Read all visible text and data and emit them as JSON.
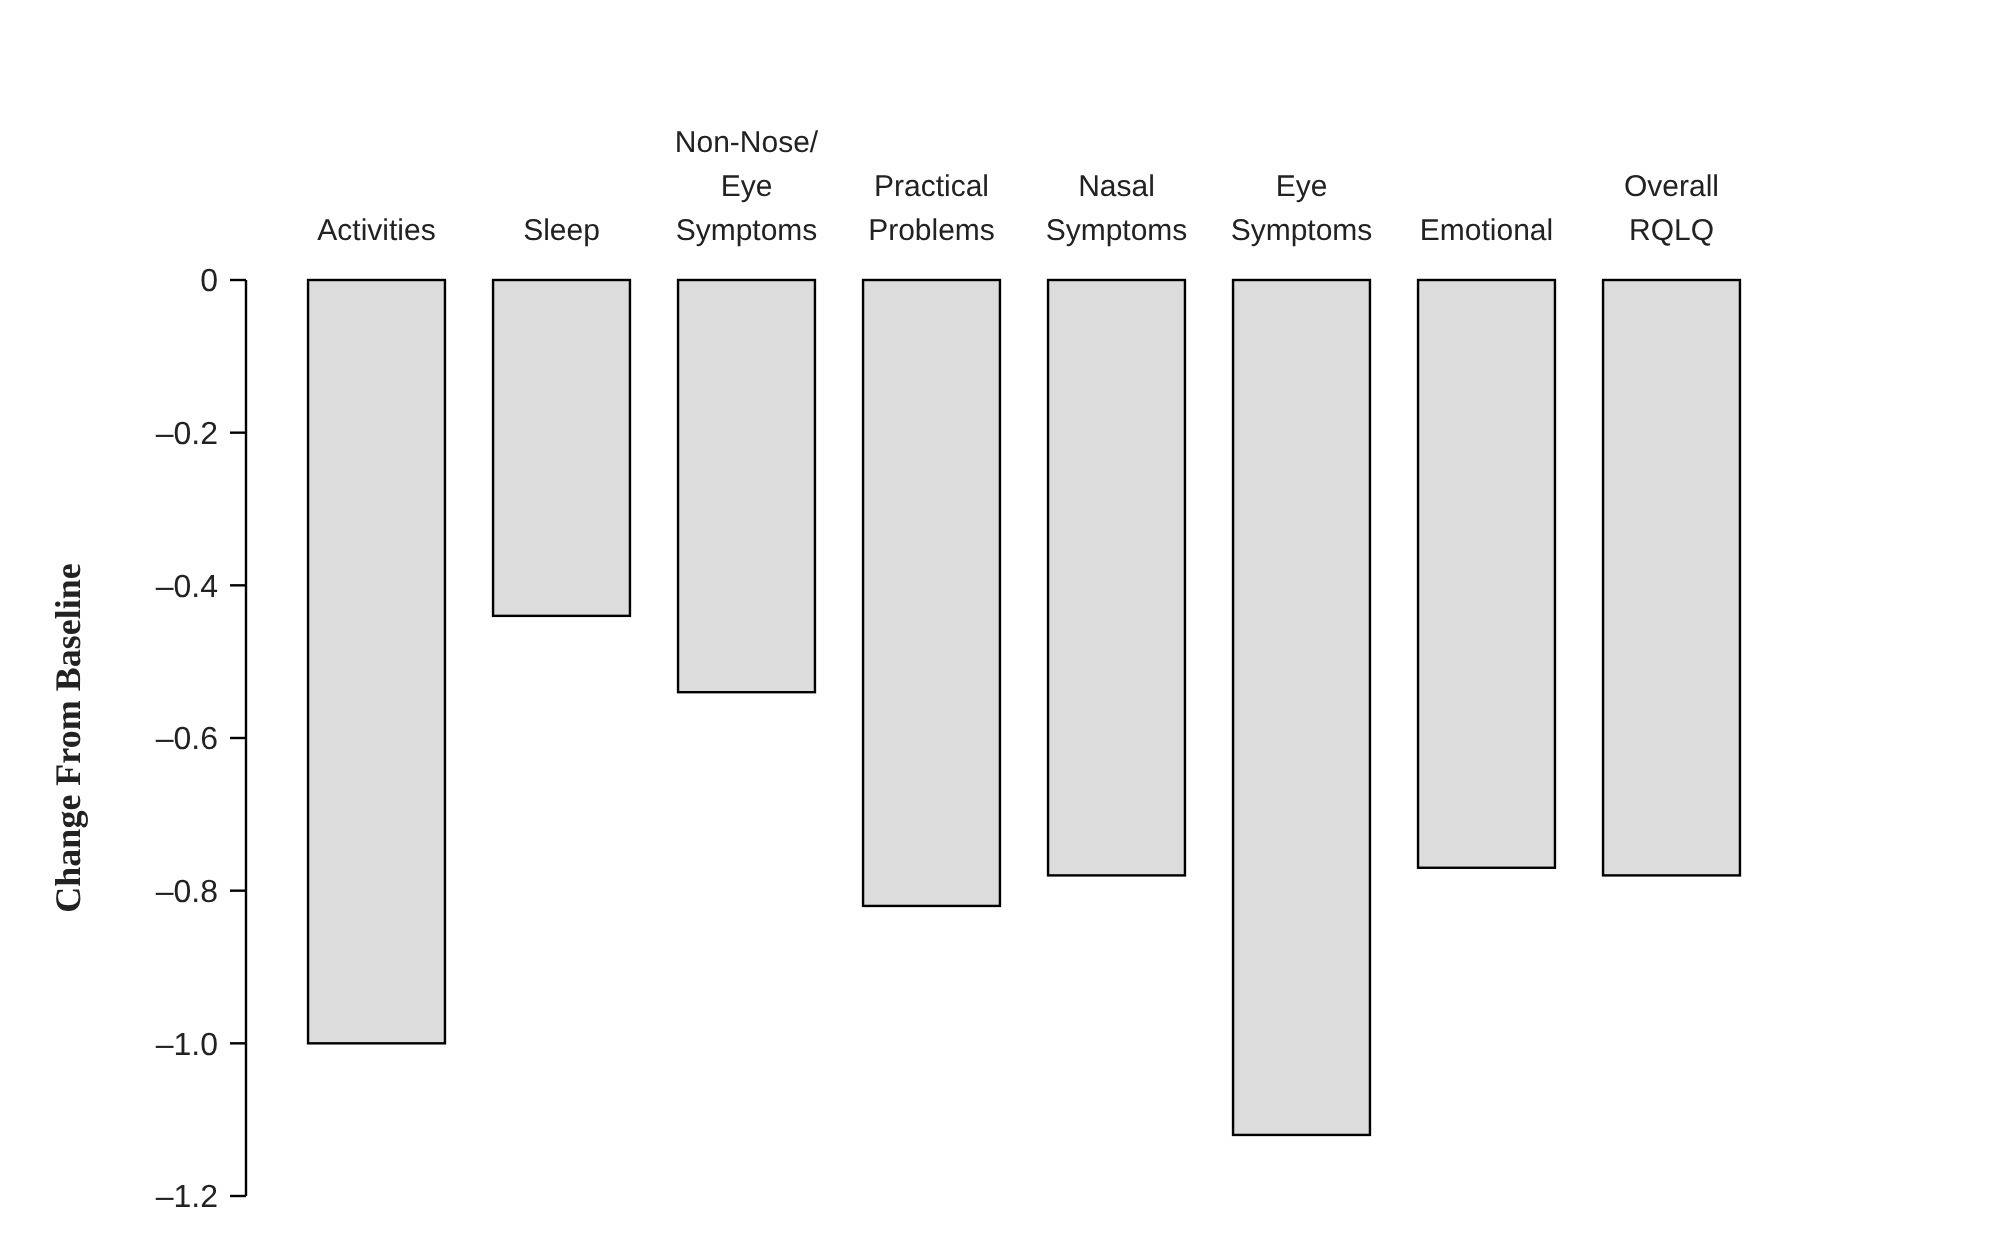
{
  "chart_data": {
    "type": "bar",
    "ylabel": "Change From Baseline",
    "categories": [
      "Activities",
      "Sleep",
      "Non-Nose/ Eye Symptoms",
      "Practical Problems",
      "Nasal Symptoms",
      "Eye Symptoms",
      "Emotional",
      "Overall RQLQ"
    ],
    "values": [
      -1.0,
      -0.44,
      -0.54,
      -0.82,
      -0.78,
      -1.12,
      -0.77,
      -0.78
    ],
    "color": "#dcdcdd",
    "ylim": [
      -1.2,
      0
    ],
    "yticks": [
      0,
      {
        "value": -0.2,
        "label": "–0.2"
      },
      {
        "value": -0.4,
        "label": "–0.4"
      },
      {
        "value": -0.6,
        "label": "–0.6"
      },
      {
        "value": -0.8,
        "label": "–0.8"
      },
      {
        "value": -1.0,
        "label": "–1.0"
      },
      {
        "value": -1.2,
        "label": "–1.2"
      }
    ],
    "grid": false
  }
}
